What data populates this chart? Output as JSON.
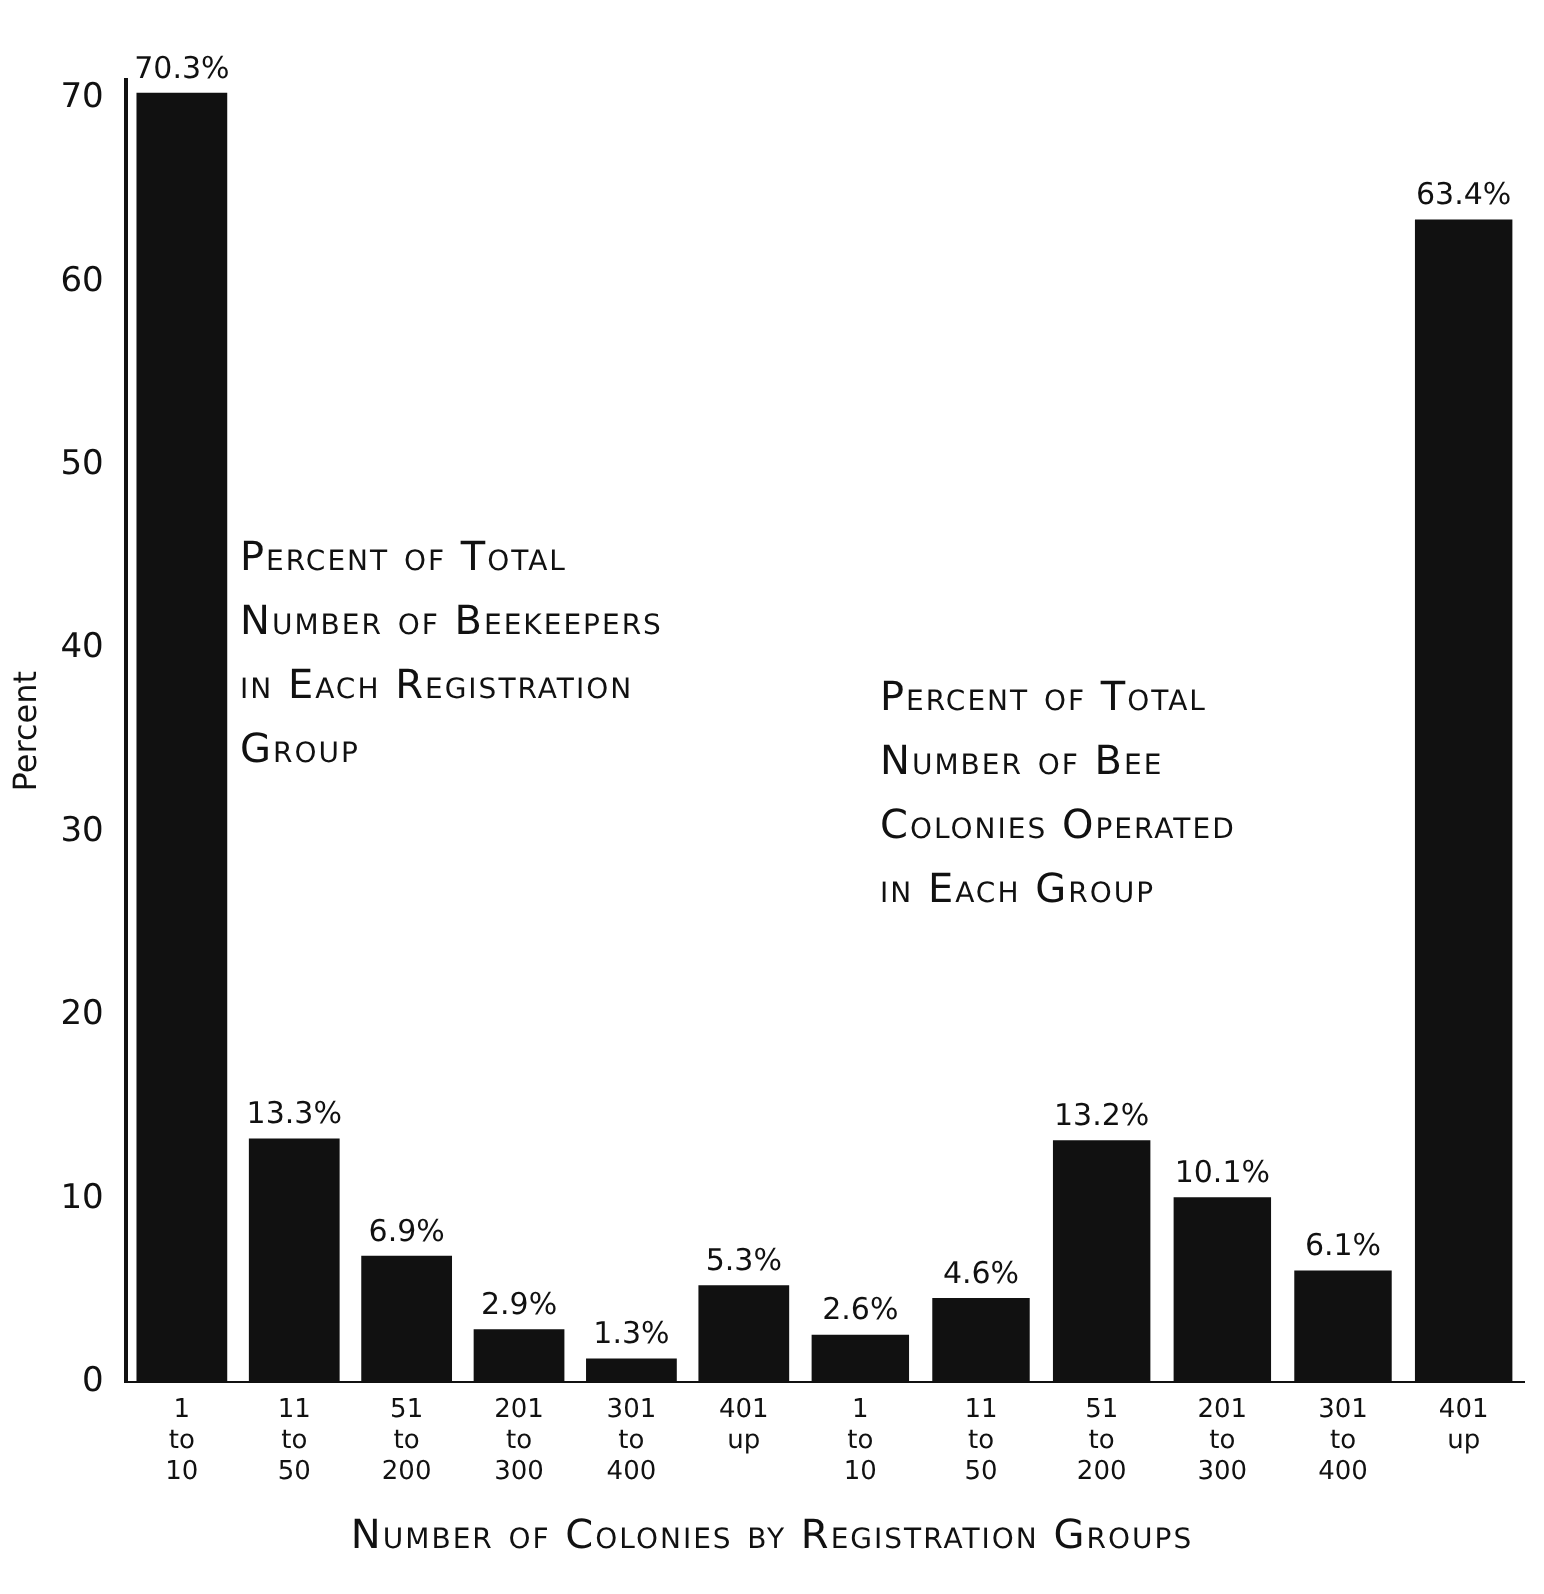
{
  "chart_data": [
    {
      "type": "bar",
      "ylabel": "Percent",
      "xlabel": "Number of Colonies by Registration Groups",
      "categories": [
        "1 to 10",
        "11 to 50",
        "51 to 200",
        "201 to 300",
        "301 to 400",
        "401 up"
      ],
      "values": [
        70.3,
        13.3,
        6.9,
        2.9,
        1.3,
        5.3
      ],
      "value_labels": [
        "70.3%",
        "13.3%",
        "6.9%",
        "2.9%",
        "1.3%",
        "5.3%"
      ],
      "color": "#111111",
      "ylim": [
        0,
        71
      ],
      "yticks": [
        0,
        10,
        20,
        30,
        40,
        50,
        60,
        70
      ],
      "grid": false,
      "legend": false,
      "annotations": [
        "Percent of Total Number of Beekeepers in Each Registration Group"
      ]
    },
    {
      "type": "bar",
      "categories": [
        "1 to 10",
        "11 to 50",
        "51 to 200",
        "201 to 300",
        "301 to 400",
        "401 up"
      ],
      "values": [
        2.6,
        4.6,
        13.2,
        10.1,
        6.1,
        63.4
      ],
      "value_labels": [
        "2.6%",
        "4.6%",
        "13.2%",
        "10.1%",
        "6.1%",
        "63.4%"
      ],
      "color": "#111111",
      "tick_labels": "x",
      "grid": false,
      "legend": false,
      "annotations": [
        "Percent of Total Number of Bee Colonies Operated in Each Group"
      ]
    }
  ]
}
